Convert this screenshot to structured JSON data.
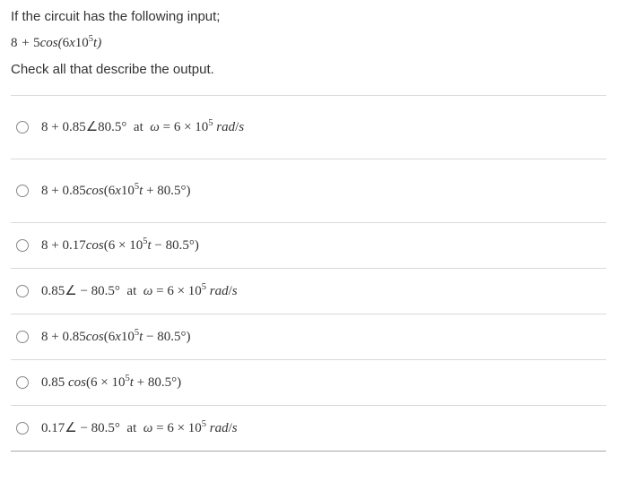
{
  "prompt": {
    "line1": "If the circuit has the following input;",
    "formula_html": "<span class='num'>8</span> + <span class='num'>5</span><span class='it'>cos</span>(<span class='num'>6</span><span class='it'>x</span><span class='num'>10</span><sup>5</sup><span class='it'>t</span>)",
    "line2": "Check all that describe the output."
  },
  "options": [
    {
      "tall": true,
      "html": "<span class='num'>8</span> + <span class='num'>0.85</span>∠<span class='num'>80.5°</span>&nbsp; at &nbsp;<span class='it'>ω</span> = <span class='num'>6</span> × <span class='num'>10</span><sup>5</sup> <span class='it'>rad</span>/<span class='it'>s</span>"
    },
    {
      "tall": true,
      "html": "<span class='num'>8</span> + <span class='num'>0.85</span><span class='it'>cos</span>(<span class='num'>6</span><span class='it'>x</span><span class='num'>10</span><sup>5</sup><span class='it'>t</span> + <span class='num'>80.5°</span>)"
    },
    {
      "tall": false,
      "html": "<span class='num'>8</span> + <span class='num'>0.17</span><span class='it'>cos</span>(<span class='num'>6</span> × <span class='num'>10</span><sup>5</sup><span class='it'>t</span> − <span class='num'>80.5°</span>)"
    },
    {
      "tall": false,
      "html": "<span class='num'>0.85</span>∠ − <span class='num'>80.5°</span>&nbsp; at &nbsp;<span class='it'>ω</span> = <span class='num'>6</span> × <span class='num'>10</span><sup>5</sup> <span class='it'>rad</span>/<span class='it'>s</span>"
    },
    {
      "tall": false,
      "html": "<span class='num'>8</span> + <span class='num'>0.85</span><span class='it'>cos</span>(<span class='num'>6</span><span class='it'>x</span><span class='num'>10</span><sup>5</sup><span class='it'>t</span> − <span class='num'>80.5°</span>)"
    },
    {
      "tall": false,
      "html": "<span class='num'>0.85</span> <span class='it'>cos</span>(<span class='num'>6</span> × <span class='num'>10</span><sup>5</sup><span class='it'>t</span> + <span class='num'>80.5°</span>)"
    },
    {
      "tall": false,
      "html": "<span class='num'>0.17</span>∠ − <span class='num'>80.5°</span>&nbsp; at &nbsp;<span class='it'>ω</span> = <span class='num'>6</span> × <span class='num'>10</span><sup>5</sup> <span class='it'>rad</span>/<span class='it'>s</span>"
    }
  ]
}
